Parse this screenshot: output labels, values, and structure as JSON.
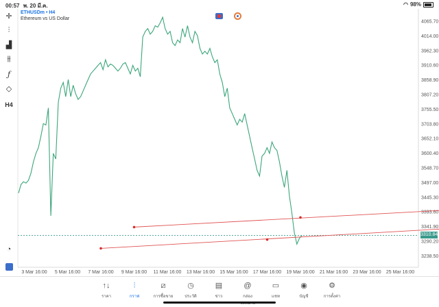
{
  "status_bar": {
    "time": "00:57",
    "date": "พ. 20 มี.ค.",
    "battery": "98%"
  },
  "symbol": {
    "pair": "ETHUSDm • H4",
    "description": "Ethereum vs US Dollar"
  },
  "toolbar": {
    "icons": [
      "crosshair-icon",
      "candles-icon",
      "bar-chart-icon",
      "indicators-icon",
      "function-icon",
      "shapes-icon"
    ],
    "timeframe": "H4"
  },
  "y_axis": {
    "labels": [
      "4065.70",
      "4014.00",
      "3962.30",
      "3910.60",
      "3858.90",
      "3807.20",
      "3755.50",
      "3703.80",
      "3652.10",
      "3600.40",
      "3548.70",
      "3497.00",
      "3445.30",
      "3393.60",
      "3341.90",
      "3290.20",
      "3238.50"
    ]
  },
  "x_axis": {
    "labels": [
      "3 Mar 16:00",
      "5 Mar 16:00",
      "7 Mar 16:00",
      "9 Mar 16:00",
      "11 Mar 16:00",
      "13 Mar 16:00",
      "15 Mar 16:00",
      "17 Mar 16:00",
      "19 Mar 16:00",
      "21 Mar 16:00",
      "23 Mar 16:00",
      "25 Mar 16:00"
    ]
  },
  "current_price": "3310.84",
  "chart_data": {
    "type": "line",
    "series": [
      {
        "values": [
          3460,
          3490,
          3500,
          3495,
          3505,
          3530,
          3570,
          3600,
          3620,
          3660,
          3705,
          3700,
          3760,
          3380,
          3600,
          3580,
          3780,
          3830,
          3850,
          3800,
          3860,
          3800,
          3840,
          3810,
          3790,
          3800,
          3820,
          3840,
          3860,
          3880,
          3890,
          3900,
          3910,
          3920,
          3895,
          3930,
          3905,
          3915,
          3910,
          3900,
          3890,
          3900,
          3915,
          3920,
          3900,
          3880,
          3910,
          3890,
          3900,
          3870,
          4010,
          4030,
          4040,
          4020,
          4030,
          4050,
          4045,
          4060,
          4080,
          4040,
          4020,
          4030,
          3990,
          3980,
          4000,
          3990,
          4040,
          4010,
          4050,
          4010,
          3990,
          4030,
          4015,
          3970,
          3950,
          3960,
          3950,
          3970,
          3940,
          3920,
          3930,
          3880,
          3850,
          3800,
          3830,
          3760,
          3740,
          3720,
          3700,
          3720,
          3710,
          3740,
          3700,
          3660,
          3620,
          3580,
          3540,
          3520,
          3590,
          3600,
          3620,
          3600,
          3640,
          3620,
          3610,
          3570,
          3520,
          3480,
          3540,
          3450,
          3390,
          3320,
          3280,
          3300,
          3310
        ]
      }
    ],
    "trendlines": [
      {
        "from": [
          3,
          3340
        ],
        "to": [
          14,
          3410
        ],
        "mid": [
          8,
          3374
        ]
      },
      {
        "from": [
          2,
          3265
        ],
        "to": [
          14,
          3345
        ],
        "mid": [
          7,
          3296
        ]
      }
    ],
    "ylim": [
      3200,
      4095
    ],
    "xlim": [
      0,
      15
    ]
  },
  "tabs": [
    {
      "label": "ราคา",
      "icon": "arrows-updown-icon"
    },
    {
      "label": "กราฟ",
      "icon": "candlestick-icon",
      "active": true
    },
    {
      "label": "การซื้อขาย",
      "icon": "trade-chart-icon"
    },
    {
      "label": "ประวัติ",
      "icon": "history-icon"
    },
    {
      "label": "ข่าว",
      "icon": "news-icon"
    },
    {
      "label": "กล่องจดหมาย",
      "icon": "at-sign-icon"
    },
    {
      "label": "แชท",
      "icon": "chat-icon"
    },
    {
      "label": "บัญชี",
      "icon": "account-icon"
    },
    {
      "label": "การตั้งค่า",
      "icon": "gear-icon"
    }
  ]
}
